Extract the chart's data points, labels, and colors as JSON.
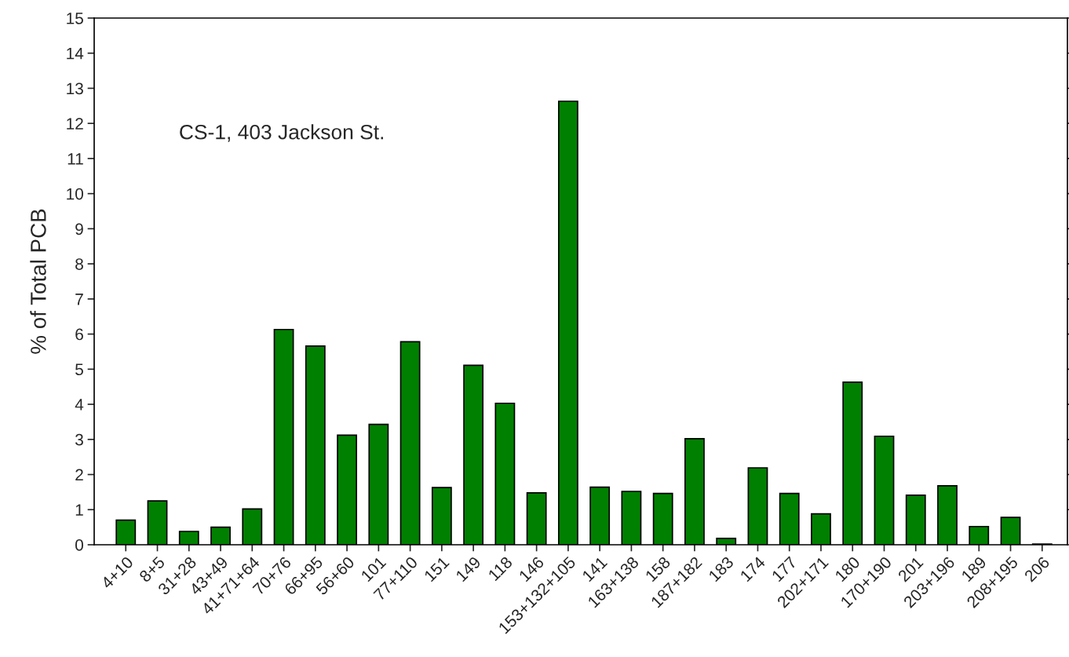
{
  "chart_data": {
    "type": "bar",
    "ylabel": "% of Total PCB",
    "annotations": [
      "CS-1, 403 Jackson St."
    ],
    "categories": [
      "4+10",
      "8+5",
      "31+28",
      "43+49",
      "41+71+64",
      "70+76",
      "66+95",
      "56+60",
      "101",
      "77+110",
      "151",
      "149",
      "118",
      "146",
      "153+132+105",
      "141",
      "163+138",
      "158",
      "187+182",
      "183",
      "174",
      "177",
      "202+171",
      "180",
      "170+190",
      "201",
      "203+196",
      "189",
      "208+195",
      "206"
    ],
    "values": [
      0.7,
      1.25,
      0.38,
      0.5,
      1.02,
      6.13,
      5.66,
      3.12,
      3.43,
      5.78,
      1.63,
      5.11,
      4.03,
      1.48,
      12.63,
      1.64,
      1.52,
      1.46,
      3.02,
      0.18,
      2.19,
      1.46,
      0.88,
      4.63,
      3.09,
      1.41,
      1.68,
      0.52,
      0.78,
      0.02
    ],
    "color": "#008000",
    "ylim": [
      0,
      15
    ],
    "yticks": [
      0,
      1,
      2,
      3,
      4,
      5,
      6,
      7,
      8,
      9,
      10,
      11,
      12,
      13,
      14,
      15
    ],
    "grid": false,
    "legend": false
  }
}
